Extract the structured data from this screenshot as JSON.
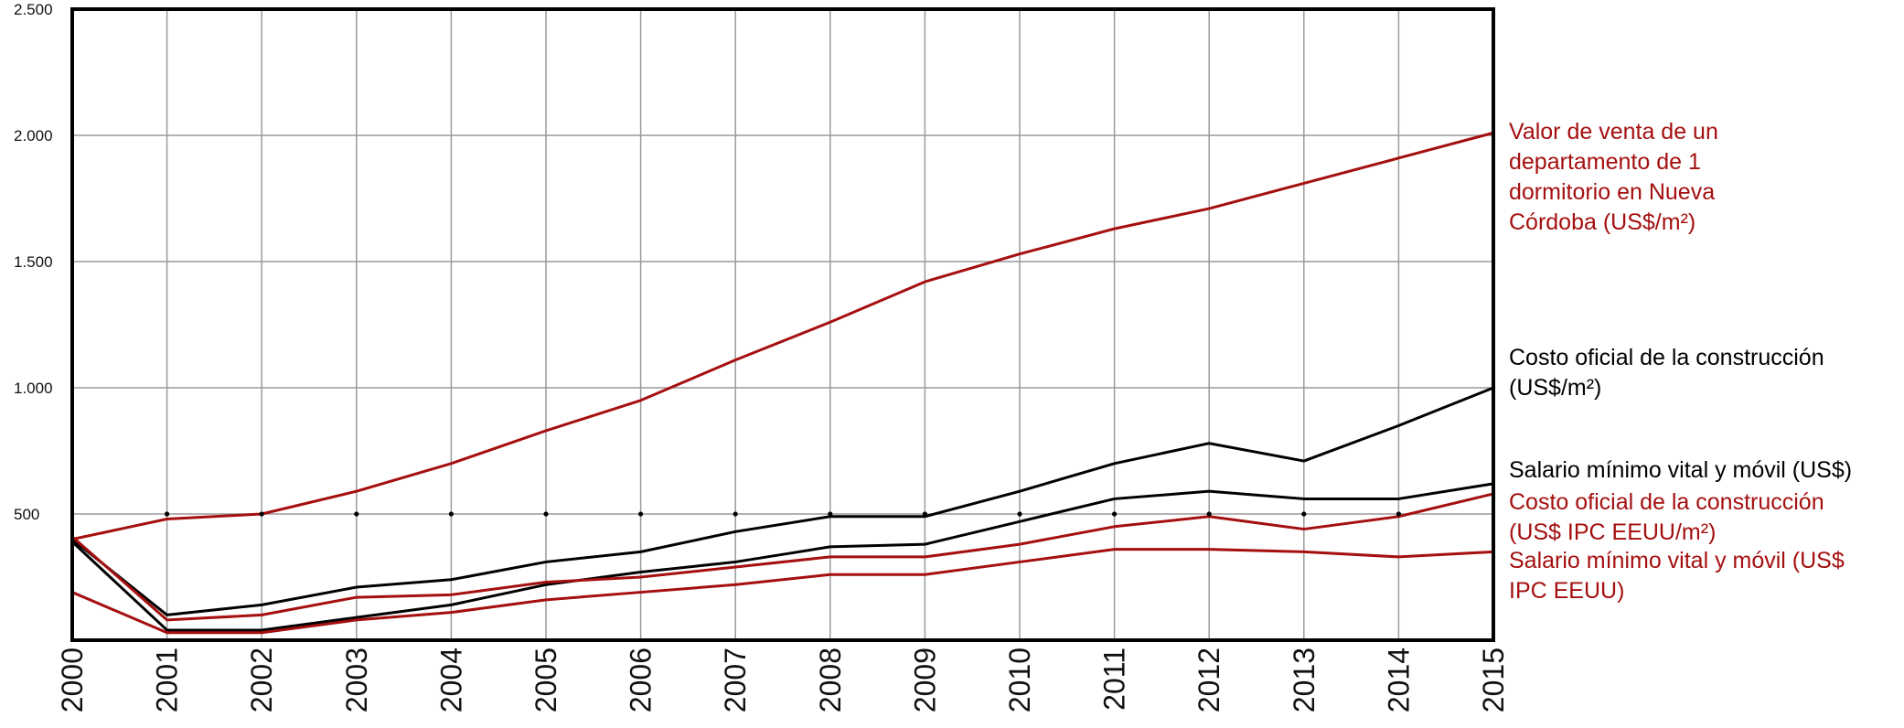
{
  "chart_data": {
    "type": "line",
    "x": [
      "2000",
      "2001",
      "2002",
      "2003",
      "2004",
      "2005",
      "2006",
      "2007",
      "2008",
      "2009",
      "2010",
      "2011",
      "2012",
      "2013",
      "2014",
      "2015"
    ],
    "ylim": [
      0,
      2500
    ],
    "yticks": [
      500,
      1000,
      1500,
      2000,
      2500
    ],
    "ytick_labels": [
      "500",
      "1.000",
      "1.500",
      "2.000",
      "2.500"
    ],
    "grid": true,
    "legend_position": "right",
    "series": [
      {
        "name": "Valor de venta de un departamento de 1 dormitorio en Nueva Córdoba (US$/m²)",
        "color": "#a50f0f",
        "values": [
          400,
          480,
          500,
          590,
          700,
          830,
          950,
          1110,
          1260,
          1420,
          1530,
          1630,
          1710,
          1810,
          1910,
          2010
        ]
      },
      {
        "name": "Costo oficial de la construcción (US$/m²)",
        "color": "#000000",
        "values": [
          400,
          100,
          140,
          210,
          240,
          310,
          350,
          430,
          490,
          490,
          590,
          700,
          780,
          710,
          850,
          1000
        ]
      },
      {
        "name": "Salario mínimo vital y móvil (US$)",
        "color": "#000000",
        "values": [
          390,
          40,
          40,
          90,
          140,
          220,
          270,
          310,
          370,
          380,
          470,
          560,
          590,
          560,
          560,
          620
        ]
      },
      {
        "name": "Costo oficial de la construcción (US$ IPC EEUU/m²)",
        "color": "#a50f0f",
        "values": [
          410,
          80,
          100,
          170,
          180,
          230,
          250,
          290,
          330,
          330,
          380,
          450,
          490,
          440,
          490,
          580
        ]
      },
      {
        "name": "Salario mínimo vital y móvil (US$ IPC EEUU)",
        "color": "#a50f0f",
        "values": [
          190,
          30,
          30,
          80,
          110,
          160,
          190,
          220,
          260,
          260,
          310,
          360,
          360,
          350,
          330,
          350
        ]
      }
    ],
    "markers": {
      "y": 500,
      "color": "#000000"
    }
  }
}
